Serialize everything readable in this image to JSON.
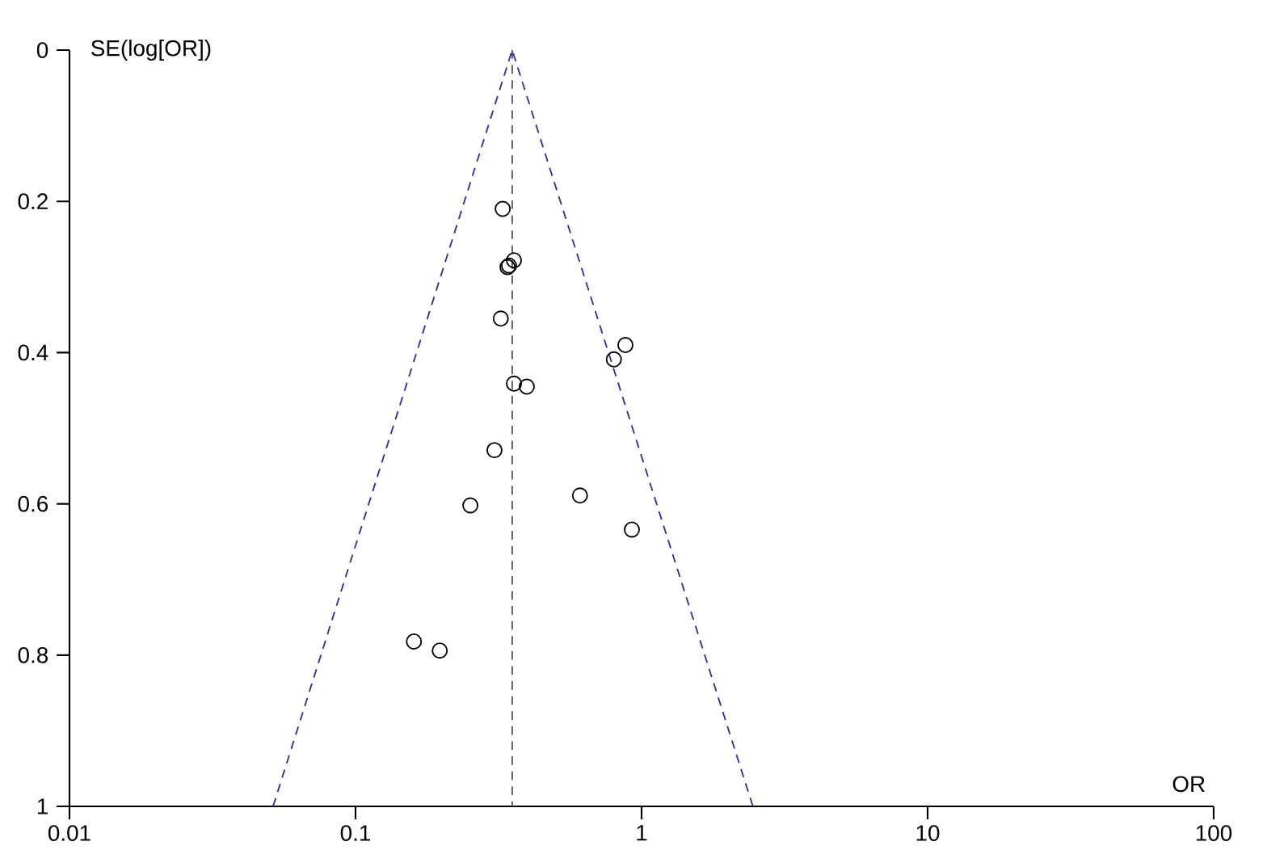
{
  "chart_data": {
    "type": "scatter",
    "xlabel": "OR",
    "ylabel": "SE(log[OR])",
    "log": "x",
    "grid": false,
    "marker": "circle",
    "xlim": [
      0.01,
      100
    ],
    "xticks": [
      0.01,
      0.1,
      1,
      10,
      100
    ],
    "ylim": [
      1,
      0
    ],
    "yticks": [
      0,
      0.2,
      0.4,
      0.6,
      0.8,
      1
    ],
    "ref_lines": [
      {
        "axis": "x",
        "value": 0.353,
        "color": "#555555",
        "line_style": "dashed"
      }
    ],
    "series": [
      {
        "type": "line",
        "color": "#2e2eb0",
        "line_style": "dashed",
        "marker": "none",
        "x": [
          0.0515,
          0.353,
          2.45
        ],
        "values": [
          1,
          0,
          1
        ]
      },
      {
        "color": "#000000",
        "x": [
          0.327,
          0.358,
          0.344,
          0.34,
          0.322,
          0.878,
          0.8,
          0.358,
          0.397,
          0.306,
          0.609,
          0.252,
          0.925,
          0.16,
          0.197
        ],
        "values": [
          0.21,
          0.278,
          0.285,
          0.287,
          0.355,
          0.39,
          0.409,
          0.441,
          0.445,
          0.529,
          0.589,
          0.602,
          0.634,
          0.782,
          0.794
        ]
      }
    ]
  }
}
